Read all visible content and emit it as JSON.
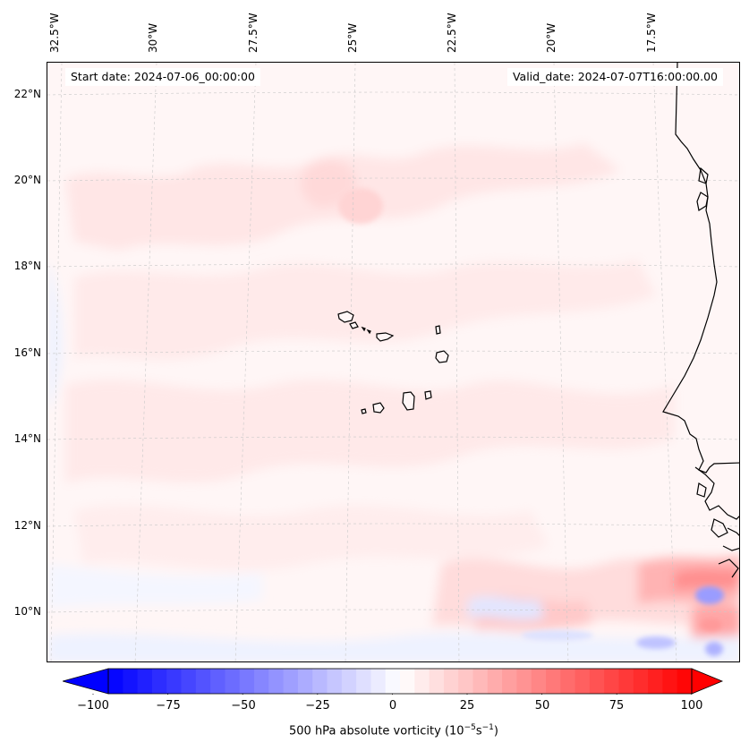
{
  "header": {
    "start_date": "Start date: 2024-07-06_00:00:00",
    "valid_date": "Valid_date: 2024-07-07T16:00:00.00"
  },
  "axes": {
    "lon_labels": [
      "32.5°W",
      "30°W",
      "27.5°W",
      "25°W",
      "22.5°W",
      "20°W",
      "17.5°W"
    ],
    "lat_labels": [
      "22°N",
      "20°N",
      "18°N",
      "16°N",
      "14°N",
      "12°N",
      "10°N"
    ]
  },
  "colorbar": {
    "ticks": [
      "−100",
      "−75",
      "−50",
      "−25",
      "0",
      "25",
      "50",
      "75",
      "100"
    ],
    "label": "500 hPa absolute vorticity (10",
    "label_exp1": "−5",
    "label_mid": "s",
    "label_exp2": "−1",
    "label_end": ")",
    "vmin": -100,
    "vmax": 100,
    "low_color": "#0000ff",
    "mid_color": "#ffffff",
    "high_color": "#ff0000"
  },
  "map": {
    "background_color": "#fff6f6",
    "coastline_color": "#000000",
    "grid_color": "#c8c8c8"
  }
}
